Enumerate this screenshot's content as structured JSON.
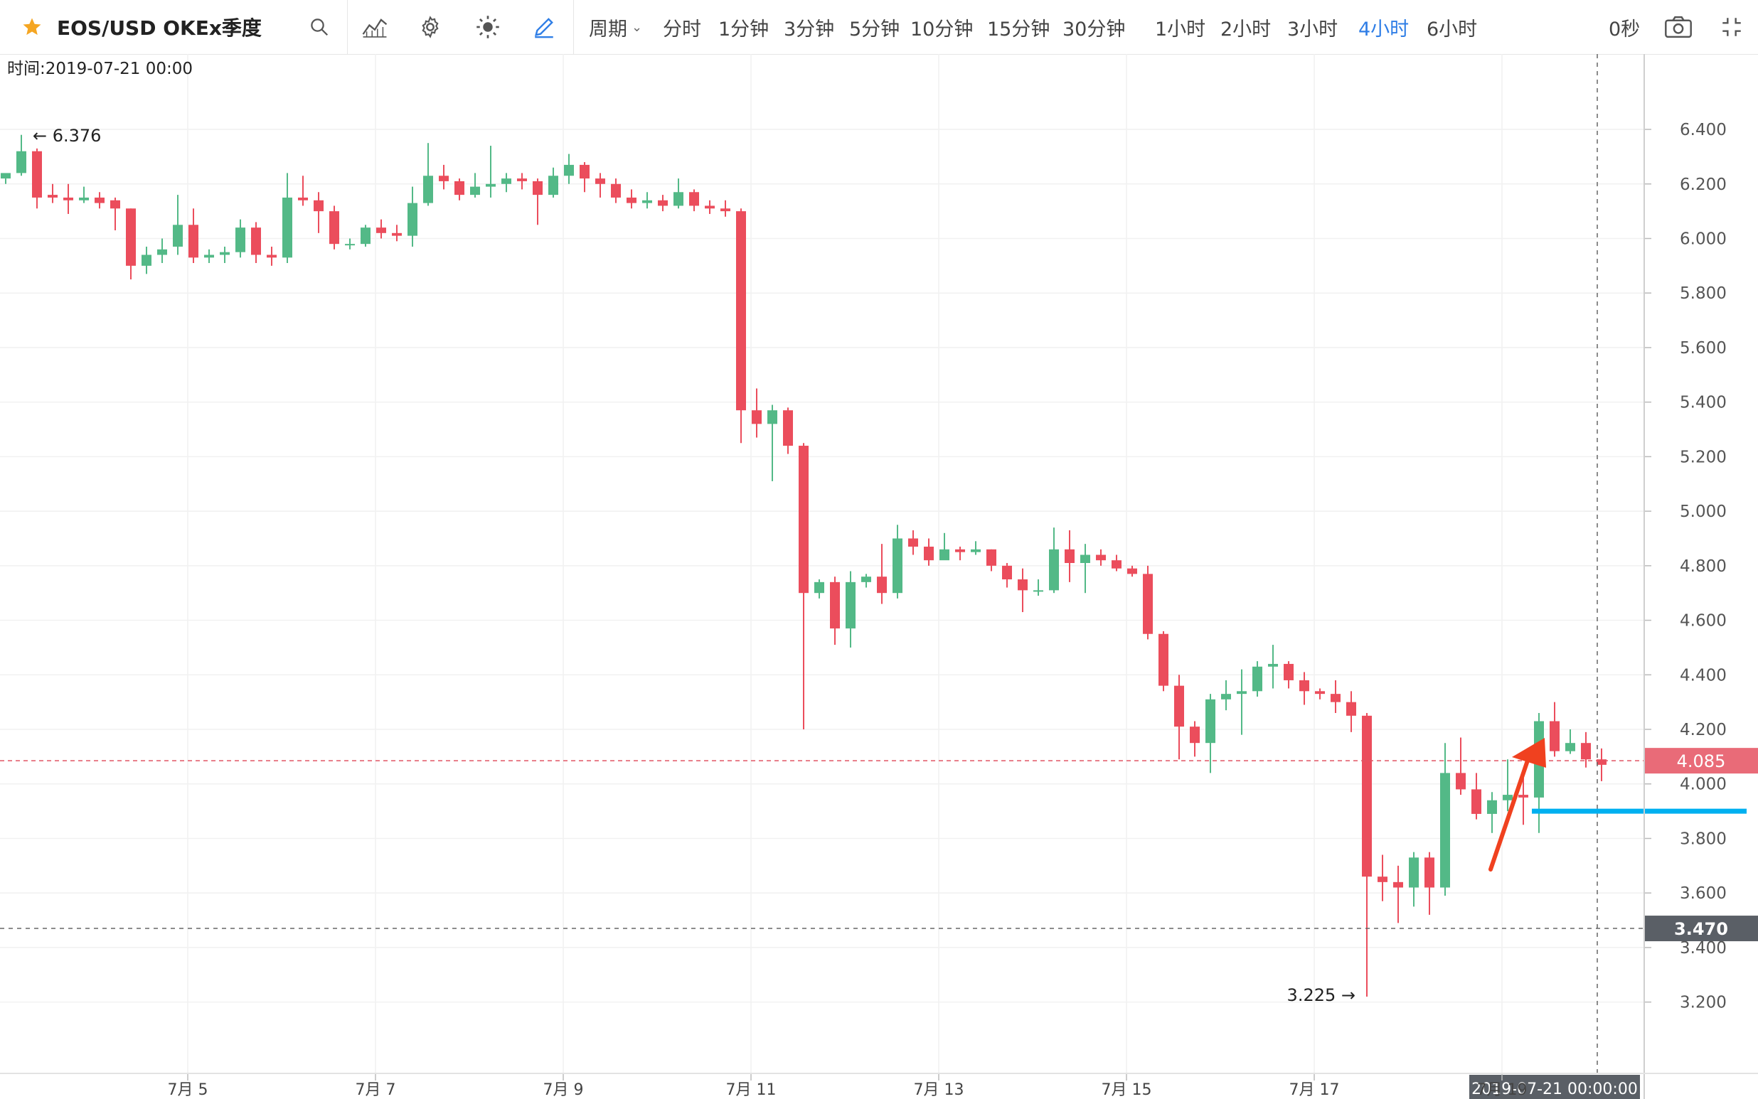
{
  "toolbar": {
    "symbol": "EOS/USD OKEx季度",
    "period_label": "周期",
    "intervals": [
      "分时",
      "1分钟",
      "3分钟",
      "5分钟",
      "10分钟",
      "15分钟",
      "30分钟",
      "1小时",
      "2小时",
      "3小时",
      "4小时",
      "6小时"
    ],
    "active_interval": "4小时",
    "countdown": "0秒",
    "icons": [
      "star-icon",
      "search-icon",
      "indicator-icon",
      "settings-icon",
      "theme-icon",
      "draw-icon",
      "camera-icon",
      "fullscreen-icon"
    ],
    "colors": {
      "active": "#2f7ee6",
      "star": "#f5a623"
    }
  },
  "chart_data": {
    "type": "candlestick",
    "time_label": "时间:2019-07-21 00:00",
    "x_ticks": [
      "7月 5",
      "7月 7",
      "7月 9",
      "7月 11",
      "7月 13",
      "7月 15",
      "7月 17",
      "7月 19"
    ],
    "crosshair_time": "2019-07-21 00:00:00",
    "y_ticks": [
      "6.400",
      "6.200",
      "6.000",
      "5.800",
      "5.600",
      "5.400",
      "5.200",
      "5.000",
      "4.800",
      "4.600",
      "4.400",
      "4.200",
      "4.000",
      "3.800",
      "3.600",
      "3.400",
      "3.200"
    ],
    "ylim": [
      3.1,
      6.52
    ],
    "x_start": "2019-07-04 00:00",
    "interval_hours": 4,
    "current_price": "4.085",
    "crosshair_price": "3.470",
    "max_marker": "6.376",
    "min_marker": "3.225",
    "colors": {
      "up": "#53b987",
      "down": "#eb4d5c",
      "support_line": "#00b0f0",
      "arrow": "#f0411f"
    },
    "support_level": 3.9,
    "candles": [
      [
        6.22,
        6.24,
        6.22,
        6.2
      ],
      [
        6.24,
        6.32,
        6.38,
        6.23
      ],
      [
        6.32,
        6.15,
        6.33,
        6.11
      ],
      [
        6.16,
        6.15,
        6.2,
        6.13
      ],
      [
        6.15,
        6.14,
        6.2,
        6.09
      ],
      [
        6.14,
        6.15,
        6.19,
        6.13
      ],
      [
        6.15,
        6.13,
        6.17,
        6.11
      ],
      [
        6.14,
        6.11,
        6.15,
        6.03
      ],
      [
        6.11,
        5.9,
        6.11,
        5.85
      ],
      [
        5.9,
        5.94,
        5.97,
        5.87
      ],
      [
        5.94,
        5.96,
        6.0,
        5.91
      ],
      [
        5.97,
        6.05,
        6.16,
        5.94
      ],
      [
        6.05,
        5.93,
        6.11,
        5.91
      ],
      [
        5.93,
        5.94,
        5.96,
        5.91
      ],
      [
        5.94,
        5.95,
        5.97,
        5.91
      ],
      [
        5.95,
        6.04,
        6.07,
        5.93
      ],
      [
        6.04,
        5.94,
        6.06,
        5.91
      ],
      [
        5.94,
        5.93,
        5.97,
        5.9
      ],
      [
        5.93,
        6.15,
        6.24,
        5.91
      ],
      [
        6.15,
        6.14,
        6.23,
        6.12
      ],
      [
        6.14,
        6.1,
        6.17,
        6.02
      ],
      [
        6.1,
        5.98,
        6.12,
        5.96
      ],
      [
        5.98,
        5.98,
        6.0,
        5.96
      ],
      [
        5.98,
        6.04,
        6.05,
        5.97
      ],
      [
        6.04,
        6.02,
        6.07,
        6.0
      ],
      [
        6.02,
        6.01,
        6.05,
        5.99
      ],
      [
        6.01,
        6.13,
        6.19,
        5.97
      ],
      [
        6.13,
        6.23,
        6.35,
        6.12
      ],
      [
        6.23,
        6.21,
        6.27,
        6.18
      ],
      [
        6.21,
        6.16,
        6.22,
        6.14
      ],
      [
        6.16,
        6.19,
        6.24,
        6.15
      ],
      [
        6.19,
        6.2,
        6.34,
        6.15
      ],
      [
        6.2,
        6.22,
        6.24,
        6.17
      ],
      [
        6.22,
        6.21,
        6.24,
        6.18
      ],
      [
        6.21,
        6.16,
        6.22,
        6.05
      ],
      [
        6.16,
        6.23,
        6.26,
        6.15
      ],
      [
        6.23,
        6.27,
        6.31,
        6.2
      ],
      [
        6.27,
        6.22,
        6.28,
        6.17
      ],
      [
        6.22,
        6.2,
        6.24,
        6.15
      ],
      [
        6.2,
        6.15,
        6.22,
        6.13
      ],
      [
        6.15,
        6.13,
        6.18,
        6.11
      ],
      [
        6.13,
        6.14,
        6.17,
        6.11
      ],
      [
        6.14,
        6.12,
        6.16,
        6.1
      ],
      [
        6.12,
        6.17,
        6.22,
        6.11
      ],
      [
        6.17,
        6.12,
        6.18,
        6.1
      ],
      [
        6.12,
        6.11,
        6.14,
        6.09
      ],
      [
        6.11,
        6.1,
        6.14,
        6.08
      ],
      [
        6.1,
        5.37,
        6.11,
        5.25
      ],
      [
        5.37,
        5.32,
        5.45,
        5.27
      ],
      [
        5.32,
        5.37,
        5.39,
        5.11
      ],
      [
        5.37,
        5.24,
        5.38,
        5.21
      ],
      [
        5.24,
        4.7,
        5.25,
        4.2
      ],
      [
        4.7,
        4.74,
        4.75,
        4.68
      ],
      [
        4.74,
        4.57,
        4.76,
        4.51
      ],
      [
        4.57,
        4.74,
        4.78,
        4.5
      ],
      [
        4.74,
        4.76,
        4.77,
        4.72
      ],
      [
        4.76,
        4.7,
        4.88,
        4.66
      ],
      [
        4.7,
        4.9,
        4.95,
        4.68
      ],
      [
        4.9,
        4.87,
        4.93,
        4.84
      ],
      [
        4.87,
        4.82,
        4.9,
        4.8
      ],
      [
        4.82,
        4.86,
        4.92,
        4.83
      ],
      [
        4.86,
        4.85,
        4.87,
        4.82
      ],
      [
        4.85,
        4.86,
        4.89,
        4.84
      ],
      [
        4.86,
        4.8,
        4.86,
        4.78
      ],
      [
        4.8,
        4.75,
        4.81,
        4.72
      ],
      [
        4.75,
        4.71,
        4.79,
        4.63
      ],
      [
        4.71,
        4.71,
        4.75,
        4.69
      ],
      [
        4.71,
        4.86,
        4.94,
        4.7
      ],
      [
        4.86,
        4.81,
        4.93,
        4.74
      ],
      [
        4.81,
        4.84,
        4.88,
        4.7
      ],
      [
        4.84,
        4.82,
        4.86,
        4.8
      ],
      [
        4.82,
        4.79,
        4.84,
        4.78
      ],
      [
        4.79,
        4.77,
        4.8,
        4.76
      ],
      [
        4.77,
        4.55,
        4.8,
        4.53
      ],
      [
        4.55,
        4.36,
        4.56,
        4.34
      ],
      [
        4.36,
        4.21,
        4.4,
        4.09
      ],
      [
        4.21,
        4.15,
        4.23,
        4.1
      ],
      [
        4.15,
        4.31,
        4.33,
        4.04
      ],
      [
        4.31,
        4.33,
        4.38,
        4.27
      ],
      [
        4.33,
        4.34,
        4.42,
        4.18
      ],
      [
        4.34,
        4.43,
        4.45,
        4.32
      ],
      [
        4.43,
        4.44,
        4.51,
        4.35
      ],
      [
        4.44,
        4.38,
        4.45,
        4.35
      ],
      [
        4.38,
        4.34,
        4.41,
        4.29
      ],
      [
        4.34,
        4.33,
        4.35,
        4.31
      ],
      [
        4.33,
        4.3,
        4.38,
        4.26
      ],
      [
        4.3,
        4.25,
        4.34,
        4.19
      ],
      [
        4.25,
        3.66,
        4.26,
        3.22
      ],
      [
        3.66,
        3.64,
        3.74,
        3.57
      ],
      [
        3.64,
        3.62,
        3.7,
        3.49
      ],
      [
        3.62,
        3.73,
        3.75,
        3.55
      ],
      [
        3.73,
        3.62,
        3.75,
        3.52
      ],
      [
        3.62,
        4.04,
        4.15,
        3.59
      ],
      [
        4.04,
        3.98,
        4.17,
        3.96
      ],
      [
        3.98,
        3.89,
        4.04,
        3.87
      ],
      [
        3.89,
        3.94,
        3.97,
        3.82
      ],
      [
        3.94,
        3.96,
        4.09,
        3.9
      ],
      [
        3.96,
        3.95,
        4.05,
        3.85
      ],
      [
        3.95,
        4.23,
        4.26,
        3.82
      ],
      [
        4.23,
        4.12,
        4.3,
        4.1
      ],
      [
        4.12,
        4.15,
        4.2,
        4.11
      ],
      [
        4.15,
        4.09,
        4.19,
        4.06
      ],
      [
        4.09,
        4.07,
        4.13,
        4.01
      ]
    ]
  }
}
